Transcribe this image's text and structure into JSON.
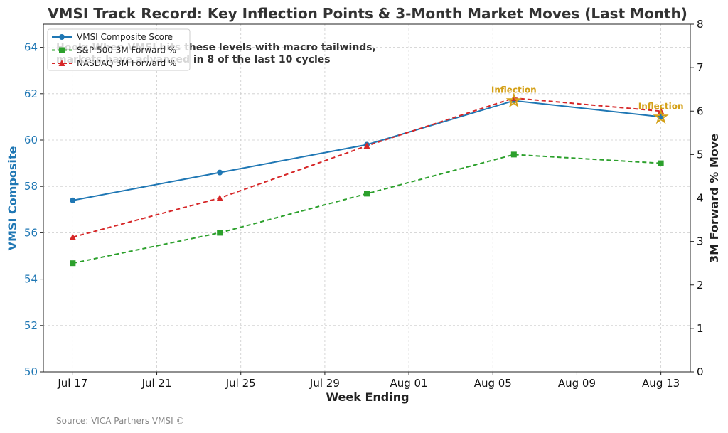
{
  "chart_data": {
    "type": "line",
    "title": "VMSI Track Record: Key Inflection Points & 3-Month Market Moves (Last Month)",
    "xlabel": "Week Ending",
    "ylabel_left": "VMSI Composite",
    "ylabel_right": "3M Forward % Move",
    "x_dates": [
      "2025-07-17",
      "2025-07-24",
      "2025-07-31",
      "2025-08-07",
      "2025-08-14"
    ],
    "x_ticks": [
      "Jul 17",
      "Jul 21",
      "Jul 25",
      "Jul 29",
      "Aug 01",
      "Aug 05",
      "Aug 09",
      "Aug 13"
    ],
    "ylim_left": [
      50,
      65
    ],
    "yticks_left": [
      "50",
      "52",
      "54",
      "56",
      "58",
      "60",
      "62",
      "64"
    ],
    "ylim_right": [
      0,
      8
    ],
    "yticks_right": [
      "0",
      "1",
      "2",
      "3",
      "4",
      "5",
      "6",
      "7",
      "8"
    ],
    "grid": true,
    "legend_placement": "top-left",
    "series": [
      {
        "name": "VMSI Composite Score",
        "axis": "left",
        "color": "#1f77b4",
        "style": "solid",
        "marker": "circle",
        "values": [
          57.4,
          58.6,
          59.8,
          61.7,
          61.0
        ]
      },
      {
        "name": "S&P 500 3M Forward %",
        "axis": "right",
        "color": "#2ca02c",
        "style": "dashed",
        "marker": "square",
        "values": [
          2.5,
          3.2,
          4.1,
          5.0,
          4.8
        ]
      },
      {
        "name": "NASDAQ 3M Forward %",
        "axis": "right",
        "color": "#d62728",
        "style": "dashed",
        "marker": "triangle",
        "values": [
          3.1,
          4.0,
          5.2,
          6.3,
          6.0
        ]
      }
    ],
    "hook_text": [
      "Hook: When VMSI hits these levels with macro tailwinds,",
      "markets have advanced in 8 of the last 10 cycles"
    ],
    "annotations": [
      {
        "text": "Inflection",
        "date": "2025-08-07",
        "value": 61.7
      },
      {
        "text": "Inflection",
        "date": "2025-08-14",
        "value": 61.0
      }
    ],
    "annotation_color": "#d4a017",
    "source": "Source: VICA Partners VMSI ©"
  }
}
